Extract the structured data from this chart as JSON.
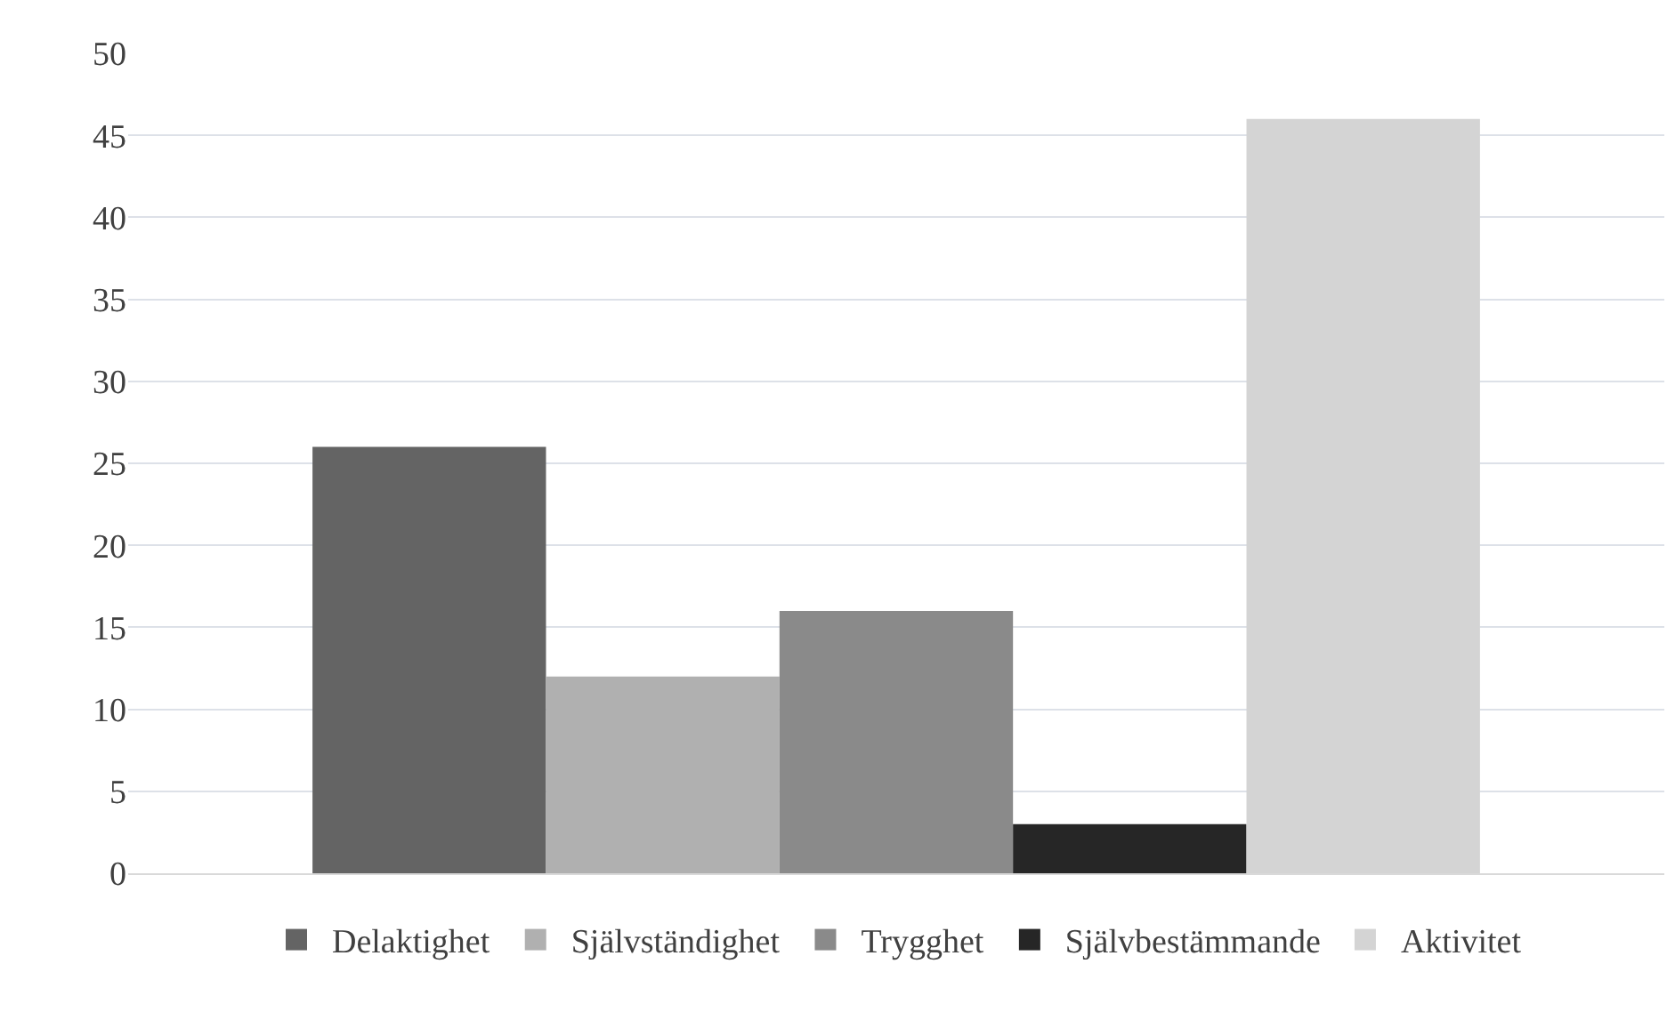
{
  "chart_data": {
    "type": "bar",
    "categories": [
      null
    ],
    "series": [
      {
        "name": "Delaktighet",
        "color": "#646464",
        "values": [
          26
        ]
      },
      {
        "name": "Självständighet",
        "color": "#b0b0b0",
        "values": [
          12
        ]
      },
      {
        "name": "Trygghet",
        "color": "#8a8a8a",
        "values": [
          16
        ]
      },
      {
        "name": "Självbestämmande",
        "color": "#262626",
        "values": [
          3
        ]
      },
      {
        "name": "Aktivitet",
        "color": "#d4d4d4",
        "values": [
          46
        ]
      }
    ],
    "ylim": [
      0,
      50
    ],
    "yticks": [
      0,
      5,
      10,
      15,
      20,
      25,
      30,
      35,
      40,
      45,
      50
    ],
    "grid": "y",
    "legend": "bottom"
  }
}
